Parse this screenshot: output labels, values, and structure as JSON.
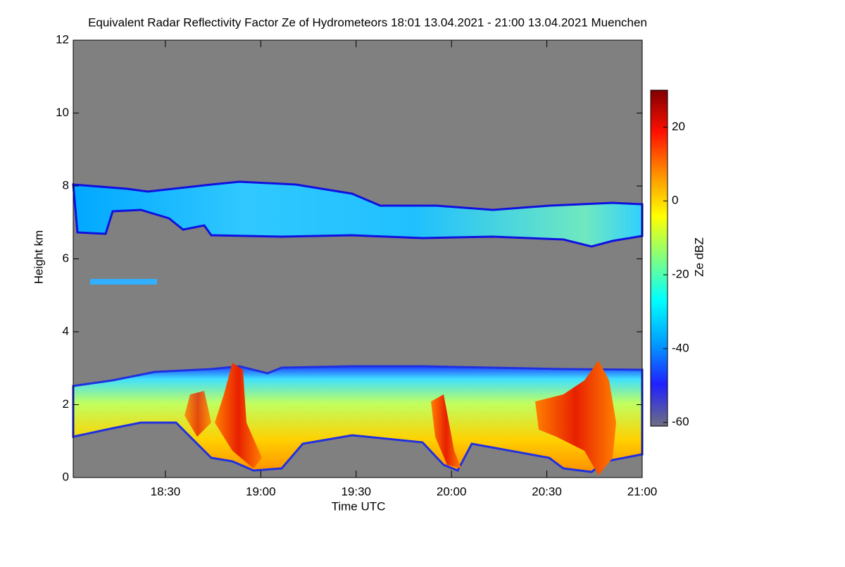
{
  "chart_data": {
    "type": "heatmap",
    "title": "Equivalent Radar Reflectivity Factor Ze of Hydrometeors   18:01 13.04.2021 - 21:00 13.04.2021 Muenchen",
    "xlabel": "Time UTC",
    "ylabel": "Height km",
    "colorbar_label": "Ze dBZ",
    "xlim": [
      18.0167,
      21.0
    ],
    "xticks": [
      {
        "value": 18.5,
        "label": "18:30"
      },
      {
        "value": 19.0,
        "label": "19:00"
      },
      {
        "value": 19.5,
        "label": "19:30"
      },
      {
        "value": 20.0,
        "label": "20:00"
      },
      {
        "value": 20.5,
        "label": "20:30"
      },
      {
        "value": 21.0,
        "label": "21:00"
      }
    ],
    "ylim": [
      0,
      12
    ],
    "yticks": [
      0,
      2,
      4,
      6,
      8,
      10,
      12
    ],
    "clim": [
      -61,
      30
    ],
    "cticks": [
      -60,
      -40,
      -20,
      0,
      20
    ],
    "colormap": [
      "#6e6e80",
      "#2020ff",
      "#00a0ff",
      "#00ffff",
      "#80ff80",
      "#ffff00",
      "#ff9000",
      "#ff1000",
      "#800000"
    ],
    "background": "#808080"
  }
}
